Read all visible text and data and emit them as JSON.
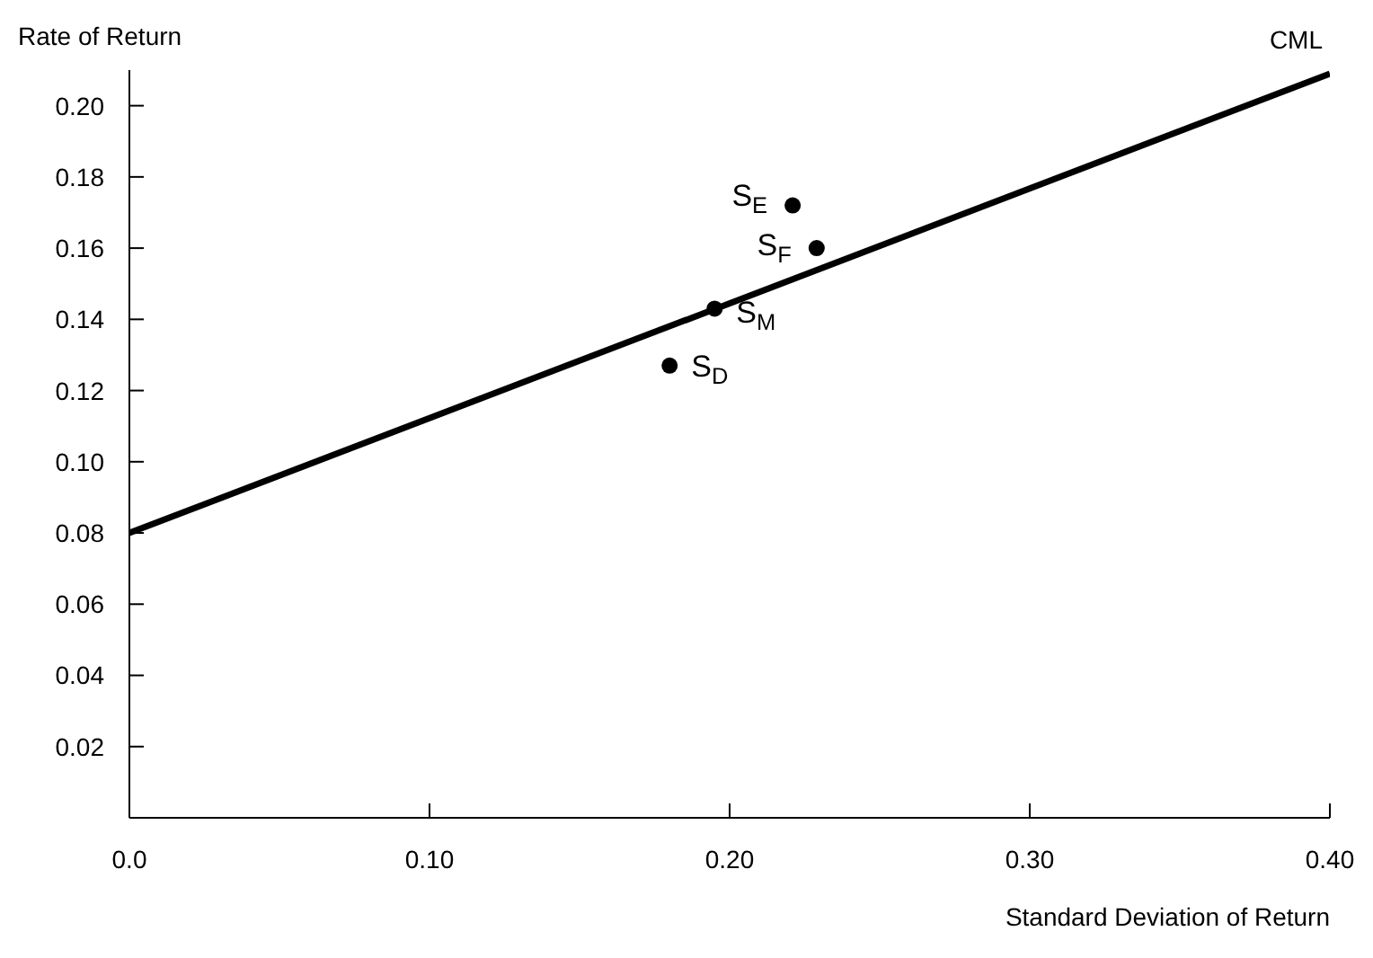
{
  "chart_data": {
    "type": "scatter",
    "xlabel": "Standard Deviation of Return",
    "ylabel": "Rate of Return",
    "xlim": [
      0,
      0.4
    ],
    "xticks": [
      {
        "value": 0,
        "label": "0.0"
      },
      {
        "value": 0.1,
        "label": "0.10"
      },
      {
        "value": 0.2,
        "label": "0.20"
      },
      {
        "value": 0.3,
        "label": "0.30"
      },
      {
        "value": 0.4,
        "label": "0.40"
      }
    ],
    "ylim": [
      0,
      0.21
    ],
    "yticks": [
      0.02,
      0.04,
      0.06,
      0.08,
      {
        "value": 0.1,
        "label": "0.10"
      },
      0.12,
      0.14,
      0.16,
      0.18,
      {
        "value": 0.2,
        "label": "0.20"
      }
    ],
    "grid": false,
    "legend": false,
    "series": [
      {
        "type": "line",
        "name": "CML",
        "color": "#000000",
        "x": [
          0,
          0.4
        ],
        "values": [
          0.08,
          0.209
        ],
        "marker": "none",
        "line_style": "solid"
      },
      {
        "type": "scatter",
        "color": "#000000",
        "x": [
          0.221,
          0.229,
          0.195,
          0.18
        ],
        "values": [
          0.172,
          0.16,
          0.143,
          0.127
        ],
        "marker": "circle"
      }
    ],
    "annotations": [
      {
        "text": "S$_{E}$",
        "x": 0.221,
        "y": 0.172
      },
      {
        "text": "S$_{F}$",
        "x": 0.229,
        "y": 0.16
      },
      {
        "text": "S$_{M}$",
        "x": 0.195,
        "y": 0.143
      },
      {
        "text": "S$_{D}$",
        "x": 0.18,
        "y": 0.127
      }
    ]
  }
}
